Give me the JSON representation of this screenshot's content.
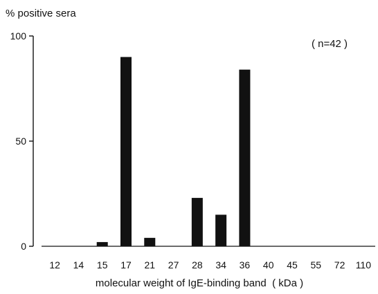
{
  "chart_data": {
    "type": "bar",
    "ylabel": "% positive sera",
    "xlabel": "molecular weight of IgE-binding band  ( kDa )",
    "annotation": "( n=42 )",
    "categories": [
      "12",
      "14",
      "15",
      "17",
      "21",
      "27",
      "28",
      "34",
      "36",
      "40",
      "45",
      "55",
      "72",
      "110"
    ],
    "values": [
      0,
      0,
      2,
      90,
      4,
      0,
      23,
      15,
      84,
      0,
      0,
      0,
      0,
      0
    ],
    "ylim": [
      0,
      100
    ],
    "yticks": [
      0,
      50,
      100
    ],
    "grid": false,
    "bar_color": "#111111"
  }
}
